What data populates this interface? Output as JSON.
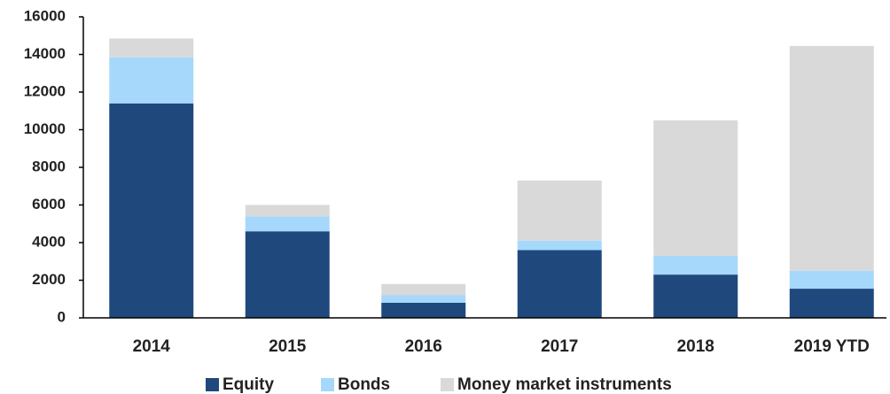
{
  "chart_data": {
    "type": "stacked_bar",
    "categories": [
      "2014",
      "2015",
      "2016",
      "2017",
      "2018",
      "2019 YTD"
    ],
    "series": [
      {
        "name": "Equity",
        "color": "#1f497d",
        "values": [
          11400,
          4600,
          800,
          3600,
          2300,
          1550
        ]
      },
      {
        "name": "Bonds",
        "color": "#a6d8fb",
        "values": [
          2450,
          800,
          400,
          500,
          1000,
          950
        ]
      },
      {
        "name": "Money market instruments",
        "color": "#d9d9d9",
        "values": [
          1000,
          600,
          600,
          3200,
          7200,
          11950
        ]
      }
    ],
    "ylim": [
      0,
      16000
    ],
    "yticks": [
      0,
      2000,
      4000,
      6000,
      8000,
      10000,
      12000,
      14000,
      16000
    ],
    "grid": false,
    "legend": "bottom"
  }
}
